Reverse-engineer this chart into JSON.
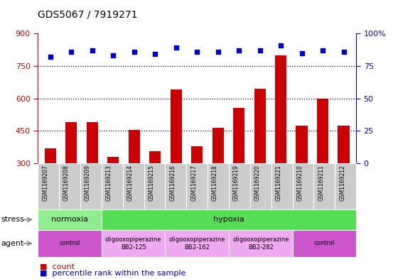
{
  "title": "GDS5067 / 7919271",
  "samples": [
    "GSM1169207",
    "GSM1169208",
    "GSM1169209",
    "GSM1169213",
    "GSM1169214",
    "GSM1169215",
    "GSM1169216",
    "GSM1169217",
    "GSM1169218",
    "GSM1169219",
    "GSM1169220",
    "GSM1169221",
    "GSM1169210",
    "GSM1169211",
    "GSM1169212"
  ],
  "counts": [
    370,
    490,
    490,
    330,
    455,
    355,
    640,
    380,
    465,
    555,
    645,
    800,
    475,
    600,
    475
  ],
  "percentiles": [
    82,
    86,
    87,
    83,
    86,
    84,
    89,
    86,
    86,
    87,
    87,
    91,
    85,
    87,
    86
  ],
  "ylim": [
    300,
    900
  ],
  "yticks": [
    300,
    450,
    600,
    750,
    900
  ],
  "y2lim": [
    0,
    100
  ],
  "y2ticks": [
    0,
    25,
    50,
    75,
    100
  ],
  "bar_color": "#cc0000",
  "dot_color": "#0000cc",
  "bg_color": "#ffffff",
  "plot_bg": "#ffffff",
  "stress_labels": [
    {
      "text": "normoxia",
      "start": 0,
      "end": 3,
      "bg": "#90ee90"
    },
    {
      "text": "hypoxia",
      "start": 3,
      "end": 15,
      "bg": "#55dd55"
    }
  ],
  "agent_labels": [
    {
      "text": "control",
      "start": 0,
      "end": 3,
      "bg": "#cc55cc"
    },
    {
      "text": "oligooxopiperazine\nBB2-125",
      "start": 3,
      "end": 6,
      "bg": "#eeaaee"
    },
    {
      "text": "oligooxopiperazine\nBB2-162",
      "start": 6,
      "end": 9,
      "bg": "#eeaaee"
    },
    {
      "text": "oligooxopiperazine\nBB2-282",
      "start": 9,
      "end": 12,
      "bg": "#eeaaee"
    },
    {
      "text": "control",
      "start": 12,
      "end": 15,
      "bg": "#cc55cc"
    }
  ],
  "legend_count_label": "count",
  "legend_pct_label": "percentile rank within the sample",
  "left_axis_color": "#cc0000",
  "right_axis_color": "#0000cc"
}
